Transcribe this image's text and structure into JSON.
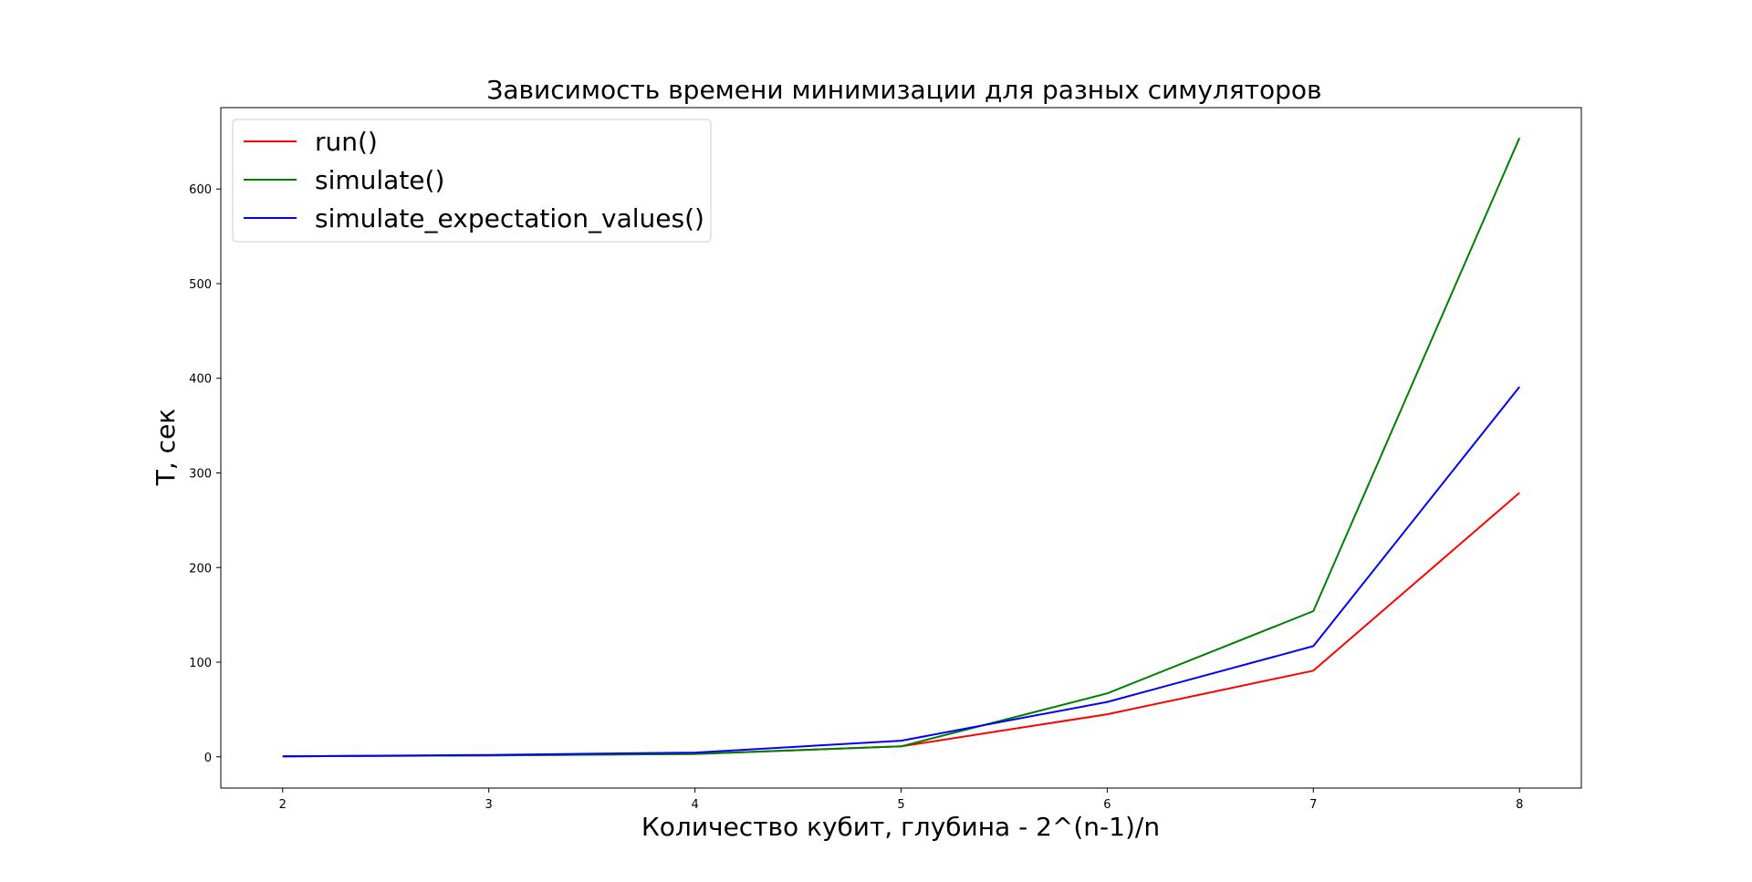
{
  "chart_data": {
    "type": "line",
    "title": "Зависимость времени минимизации для разных симуляторов",
    "xlabel": "Количество кубит, глубина - 2^(n-1)/n",
    "ylabel": "T, сек",
    "x": [
      2,
      3,
      4,
      5,
      6,
      7,
      8
    ],
    "xticks": [
      "2",
      "3",
      "4",
      "5",
      "6",
      "7",
      "8"
    ],
    "yticks": [
      "0",
      "100",
      "200",
      "300",
      "400",
      "500",
      "600"
    ],
    "xlim": [
      1.7,
      8.3
    ],
    "ylim": [
      -33,
      686
    ],
    "grid": false,
    "legend_position": "upper-left",
    "series": [
      {
        "name": "run()",
        "color": "#ff0000",
        "values": [
          0.5,
          1.5,
          3,
          11,
          45,
          91,
          279
        ]
      },
      {
        "name": "simulate()",
        "color": "#008000",
        "values": [
          0.5,
          1.5,
          3,
          11,
          67,
          154,
          654
        ]
      },
      {
        "name": "simulate_expectation_values()",
        "color": "#0000ff",
        "values": [
          0.5,
          2,
          4.5,
          17,
          58,
          117,
          391
        ]
      }
    ]
  }
}
